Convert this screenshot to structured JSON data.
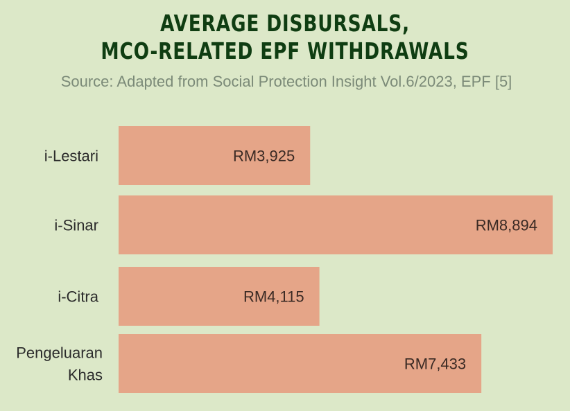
{
  "title_lines": [
    "AVERAGE DISBURSALS,",
    "MCO-RELATED EPF WITHDRAWALS"
  ],
  "subtitle": "Source: Adapted from Social Protection Insight Vol.6/2023, EPF [5]",
  "colors": {
    "background": "#dce8c8",
    "title": "#0f3d12",
    "subtitle": "#7b8a78",
    "bar": "#e5a588"
  },
  "chart_data": {
    "type": "bar",
    "orientation": "horizontal",
    "title": "AVERAGE DISBURSALS, MCO-RELATED EPF WITHDRAWALS",
    "subtitle": "Source: Adapted from Social Protection Insight Vol.6/2023, EPF [5]",
    "categories": [
      "i-Lestari",
      "i-Sinar",
      "i-Citra",
      "Pengeluaran Khas"
    ],
    "category_label_lines": [
      [
        "i-Lestari"
      ],
      [
        "i-Sinar"
      ],
      [
        "i-Citra"
      ],
      [
        "Pengeluaran",
        "Khas"
      ]
    ],
    "values": [
      3925,
      8894,
      4115,
      7433
    ],
    "value_labels": [
      "RM3,925",
      "RM8,894",
      "RM4,115",
      "RM7,433"
    ],
    "xlim": [
      0,
      8894
    ],
    "grid": false,
    "legend": "none",
    "axes_visible": false
  }
}
